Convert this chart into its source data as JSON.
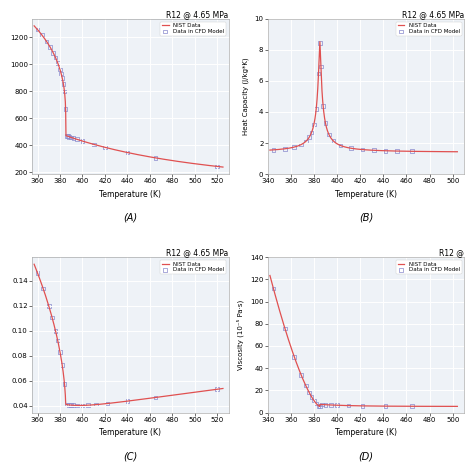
{
  "title_AB": "R12 @ 4.65 MPa",
  "title_C": "R12 @ 4.65 MPa",
  "title_D": "R12 @",
  "legend_nist": "NIST Data",
  "legend_cfd": "Data in CFD Model",
  "nist_color": "#e05050",
  "cfd_color": "#8888cc",
  "bg_color": "#eef2f7",
  "T_critical": 385.12,
  "label_A": "(A)",
  "label_B": "(B)",
  "label_C": "(C)",
  "label_D": "(D)",
  "xlabel": "Temperature (K)",
  "ylabel_B": "Heat Capacity (J/kg*K)",
  "ylabel_D": "Viscosity (10⁻⁵ Pa·s)"
}
